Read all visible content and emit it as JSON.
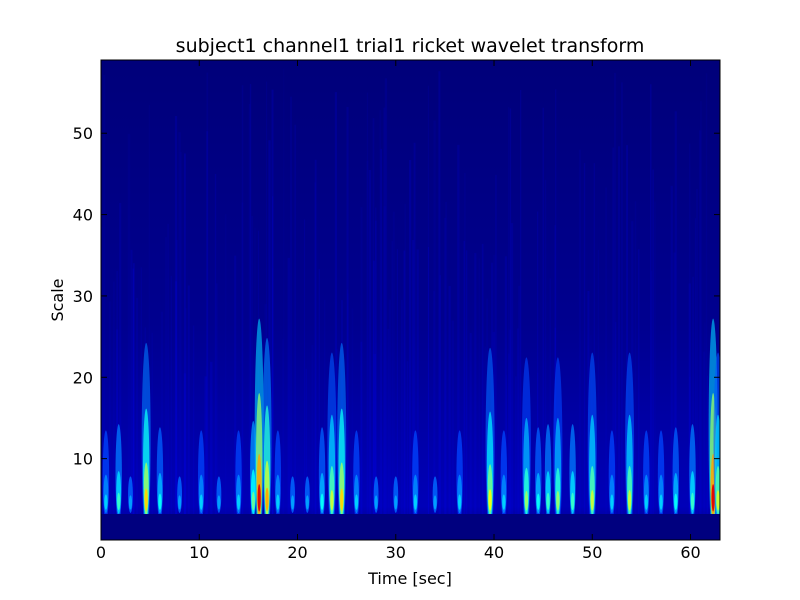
{
  "chart_data": {
    "type": "heatmap",
    "title": "subject1 channel1 trial1 ricket wavelet transform",
    "xlabel": "Time [sec]",
    "ylabel": "Scale",
    "xlim": [
      0,
      63
    ],
    "ylim": [
      0,
      59
    ],
    "xticks": [
      0,
      10,
      20,
      30,
      40,
      50,
      60
    ],
    "yticks": [
      10,
      20,
      30,
      40,
      50
    ],
    "colormap": "jet",
    "grid": false,
    "colors": {
      "background_low": "#00007f",
      "mid_blue": "#0000ff",
      "high_cyan": "#00ffff",
      "peak_red": "#ff0000"
    },
    "bursts": [
      {
        "time": 0.5,
        "intensity": 0.35
      },
      {
        "time": 1.8,
        "intensity": 0.45
      },
      {
        "time": 3.0,
        "intensity": 0.3
      },
      {
        "time": 4.6,
        "intensity": 0.7
      },
      {
        "time": 6.0,
        "intensity": 0.4
      },
      {
        "time": 8.0,
        "intensity": 0.3
      },
      {
        "time": 10.2,
        "intensity": 0.35
      },
      {
        "time": 12.0,
        "intensity": 0.3
      },
      {
        "time": 14.0,
        "intensity": 0.35
      },
      {
        "time": 15.5,
        "intensity": 0.5
      },
      {
        "time": 16.1,
        "intensity": 0.95
      },
      {
        "time": 16.9,
        "intensity": 0.75
      },
      {
        "time": 18.0,
        "intensity": 0.35
      },
      {
        "time": 19.5,
        "intensity": 0.3
      },
      {
        "time": 21.0,
        "intensity": 0.3
      },
      {
        "time": 22.5,
        "intensity": 0.4
      },
      {
        "time": 23.5,
        "intensity": 0.6
      },
      {
        "time": 24.5,
        "intensity": 0.7
      },
      {
        "time": 26.0,
        "intensity": 0.35
      },
      {
        "time": 28.0,
        "intensity": 0.3
      },
      {
        "time": 30.0,
        "intensity": 0.3
      },
      {
        "time": 32.0,
        "intensity": 0.35
      },
      {
        "time": 34.0,
        "intensity": 0.3
      },
      {
        "time": 36.5,
        "intensity": 0.35
      },
      {
        "time": 39.6,
        "intensity": 0.65
      },
      {
        "time": 41.0,
        "intensity": 0.35
      },
      {
        "time": 43.3,
        "intensity": 0.55
      },
      {
        "time": 44.5,
        "intensity": 0.4
      },
      {
        "time": 45.5,
        "intensity": 0.45
      },
      {
        "time": 46.5,
        "intensity": 0.55
      },
      {
        "time": 48.0,
        "intensity": 0.45
      },
      {
        "time": 50.0,
        "intensity": 0.6
      },
      {
        "time": 52.0,
        "intensity": 0.35
      },
      {
        "time": 53.8,
        "intensity": 0.6
      },
      {
        "time": 55.5,
        "intensity": 0.35
      },
      {
        "time": 57.0,
        "intensity": 0.35
      },
      {
        "time": 58.5,
        "intensity": 0.4
      },
      {
        "time": 60.2,
        "intensity": 0.45
      },
      {
        "time": 62.3,
        "intensity": 0.95
      },
      {
        "time": 62.8,
        "intensity": 0.6
      }
    ]
  }
}
